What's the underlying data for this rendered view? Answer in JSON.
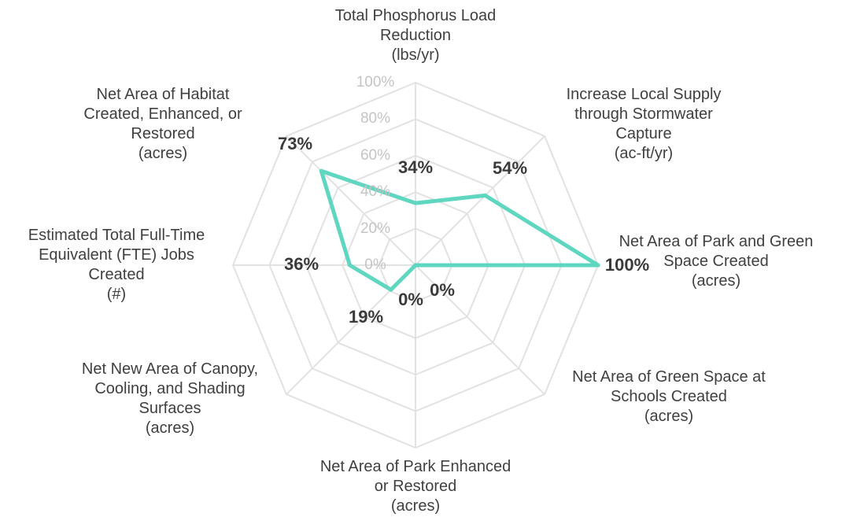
{
  "chart_data": {
    "type": "radar",
    "title": "",
    "axis_range": [
      0,
      100
    ],
    "tick_labels": [
      "0%",
      "20%",
      "40%",
      "60%",
      "80%",
      "100%"
    ],
    "grid": true,
    "series_color": "#5ed6c0",
    "grid_color": "#e2e2e2",
    "axes": [
      {
        "label": "Total Phosphorus Load\nReduction\n(lbs/yr)",
        "value": 34,
        "value_label": "34%"
      },
      {
        "label": "Increase Local Supply\nthrough Stormwater\nCapture\n(ac-ft/yr)",
        "value": 54,
        "value_label": "54%"
      },
      {
        "label": "Net Area of Park and Green\nSpace Created\n(acres)",
        "value": 100,
        "value_label": "100%"
      },
      {
        "label": "Net Area of Green Space at\nSchools Created\n(acres)",
        "value": 0,
        "value_label": "0%"
      },
      {
        "label": "Net Area of Park Enhanced\nor Restored\n(acres)",
        "value": 0,
        "value_label": "0%"
      },
      {
        "label": "Net New Area of Canopy,\nCooling, and Shading\nSurfaces\n(acres)",
        "value": 19,
        "value_label": "19%"
      },
      {
        "label": "Estimated Total Full-Time\nEquivalent (FTE) Jobs\nCreated\n(#)",
        "value": 36,
        "value_label": "36%"
      },
      {
        "label": "Net Area of Habitat\nCreated, Enhanced, or\nRestored\n(acres)",
        "value": 73,
        "value_label": "73%"
      }
    ]
  }
}
